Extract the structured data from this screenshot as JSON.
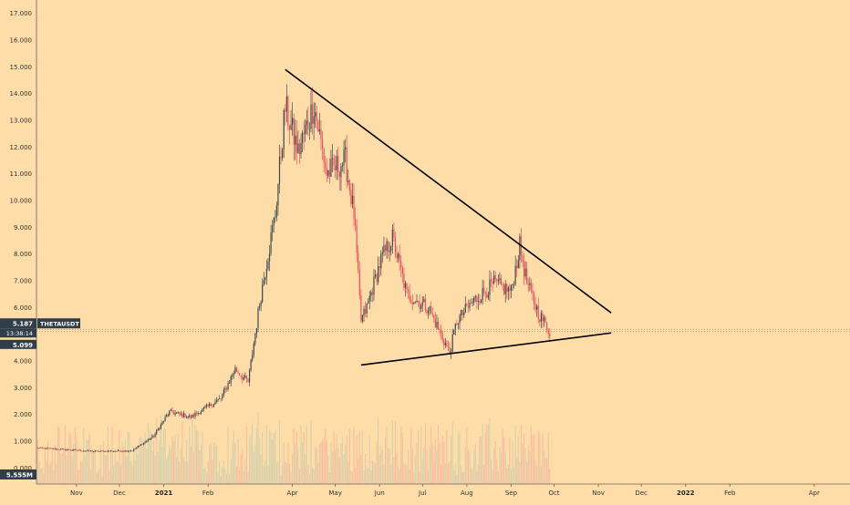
{
  "chart_data": {
    "type": "candlestick",
    "symbol": "THETAUSDT",
    "colors": {
      "background": "#FFDDA8",
      "up": "#3C4A50",
      "down": "#E8505B",
      "trendline": "#000000",
      "price_badge": "#2F3E4A",
      "volume_badge": "#2F3E4A",
      "current_line": "#888888"
    },
    "y_ticks": [
      "17.000",
      "16.000",
      "15.000",
      "14.000",
      "13.000",
      "12.000",
      "11.000",
      "10.000",
      "9.000",
      "8.000",
      "7.000",
      "6.000",
      "4.000",
      "3.000",
      "2.000",
      "1.000",
      "0.000"
    ],
    "y_tick_values": [
      17,
      16,
      15,
      14,
      13,
      12,
      11,
      10,
      9,
      8,
      7,
      6,
      4,
      3,
      2,
      1,
      0
    ],
    "ylim": [
      -0.6,
      17.5
    ],
    "x_ticks": [
      {
        "label": "Nov",
        "date": "2020-11-01",
        "bold": false
      },
      {
        "label": "Dec",
        "date": "2020-12-01",
        "bold": false
      },
      {
        "label": "2021",
        "date": "2021-01-01",
        "bold": true
      },
      {
        "label": "Feb",
        "date": "2021-02-01",
        "bold": false
      },
      {
        "label": "Apr",
        "date": "2021-04-01",
        "bold": false
      },
      {
        "label": "May",
        "date": "2021-05-01",
        "bold": false
      },
      {
        "label": "Jun",
        "date": "2021-06-01",
        "bold": false
      },
      {
        "label": "Jul",
        "date": "2021-07-01",
        "bold": false
      },
      {
        "label": "Aug",
        "date": "2021-08-01",
        "bold": false
      },
      {
        "label": "Sep",
        "date": "2021-09-01",
        "bold": false
      },
      {
        "label": "Oct",
        "date": "2021-10-01",
        "bold": false
      },
      {
        "label": "Nov",
        "date": "2021-11-01",
        "bold": false
      },
      {
        "label": "Dec",
        "date": "2021-12-01",
        "bold": false
      },
      {
        "label": "2022",
        "date": "2022-01-01",
        "bold": true
      },
      {
        "label": "Feb",
        "date": "2022-02-01",
        "bold": false
      },
      {
        "label": "Apr",
        "date": "2022-04-01",
        "bold": false
      }
    ],
    "xlim": [
      "2020-10-04",
      "2022-04-26"
    ],
    "price_key_points": [
      {
        "date": "2020-10-04",
        "close": 0.75
      },
      {
        "date": "2020-11-15",
        "close": 0.62
      },
      {
        "date": "2020-12-10",
        "close": 0.65
      },
      {
        "date": "2020-12-25",
        "close": 1.2
      },
      {
        "date": "2021-01-05",
        "close": 2.1
      },
      {
        "date": "2021-01-20",
        "close": 1.9
      },
      {
        "date": "2021-02-10",
        "close": 2.6
      },
      {
        "date": "2021-02-20",
        "close": 3.7
      },
      {
        "date": "2021-03-01",
        "close": 3.2
      },
      {
        "date": "2021-03-10",
        "close": 6.5
      },
      {
        "date": "2021-03-20",
        "close": 9.5
      },
      {
        "date": "2021-03-27",
        "close": 13.5
      },
      {
        "date": "2021-04-05",
        "close": 11.8
      },
      {
        "date": "2021-04-16",
        "close": 13.6
      },
      {
        "date": "2021-04-25",
        "close": 11.0
      },
      {
        "date": "2021-05-08",
        "close": 11.5
      },
      {
        "date": "2021-05-14",
        "close": 9.5
      },
      {
        "date": "2021-05-19",
        "close": 5.5
      },
      {
        "date": "2021-05-23",
        "close": 6.0
      },
      {
        "date": "2021-06-02",
        "close": 7.8
      },
      {
        "date": "2021-06-10",
        "close": 8.6
      },
      {
        "date": "2021-06-20",
        "close": 6.5
      },
      {
        "date": "2021-07-05",
        "close": 6.0
      },
      {
        "date": "2021-07-20",
        "close": 4.3
      },
      {
        "date": "2021-07-25",
        "close": 5.5
      },
      {
        "date": "2021-08-05",
        "close": 6.2
      },
      {
        "date": "2021-08-20",
        "close": 6.9
      },
      {
        "date": "2021-09-01",
        "close": 6.6
      },
      {
        "date": "2021-09-07",
        "close": 8.3
      },
      {
        "date": "2021-09-12",
        "close": 6.9
      },
      {
        "date": "2021-09-20",
        "close": 5.8
      },
      {
        "date": "2021-09-28",
        "close": 5.1
      }
    ],
    "trendlines": [
      {
        "name": "upper",
        "start": {
          "date": "2021-03-27",
          "value": 14.9
        },
        "end": {
          "date": "2021-11-10",
          "value": 5.8
        }
      },
      {
        "name": "lower",
        "start": {
          "date": "2021-05-19",
          "value": 3.85
        },
        "end": {
          "date": "2021-11-10",
          "value": 5.05
        }
      }
    ],
    "price_badge": {
      "value": 5.187,
      "label": "5.187",
      "symbol": "THETAUSDT",
      "timer": "13:38:14"
    },
    "current_badge": {
      "value": 5.099,
      "label": "5.099"
    },
    "volume_badge": {
      "label": "5.555M"
    }
  }
}
